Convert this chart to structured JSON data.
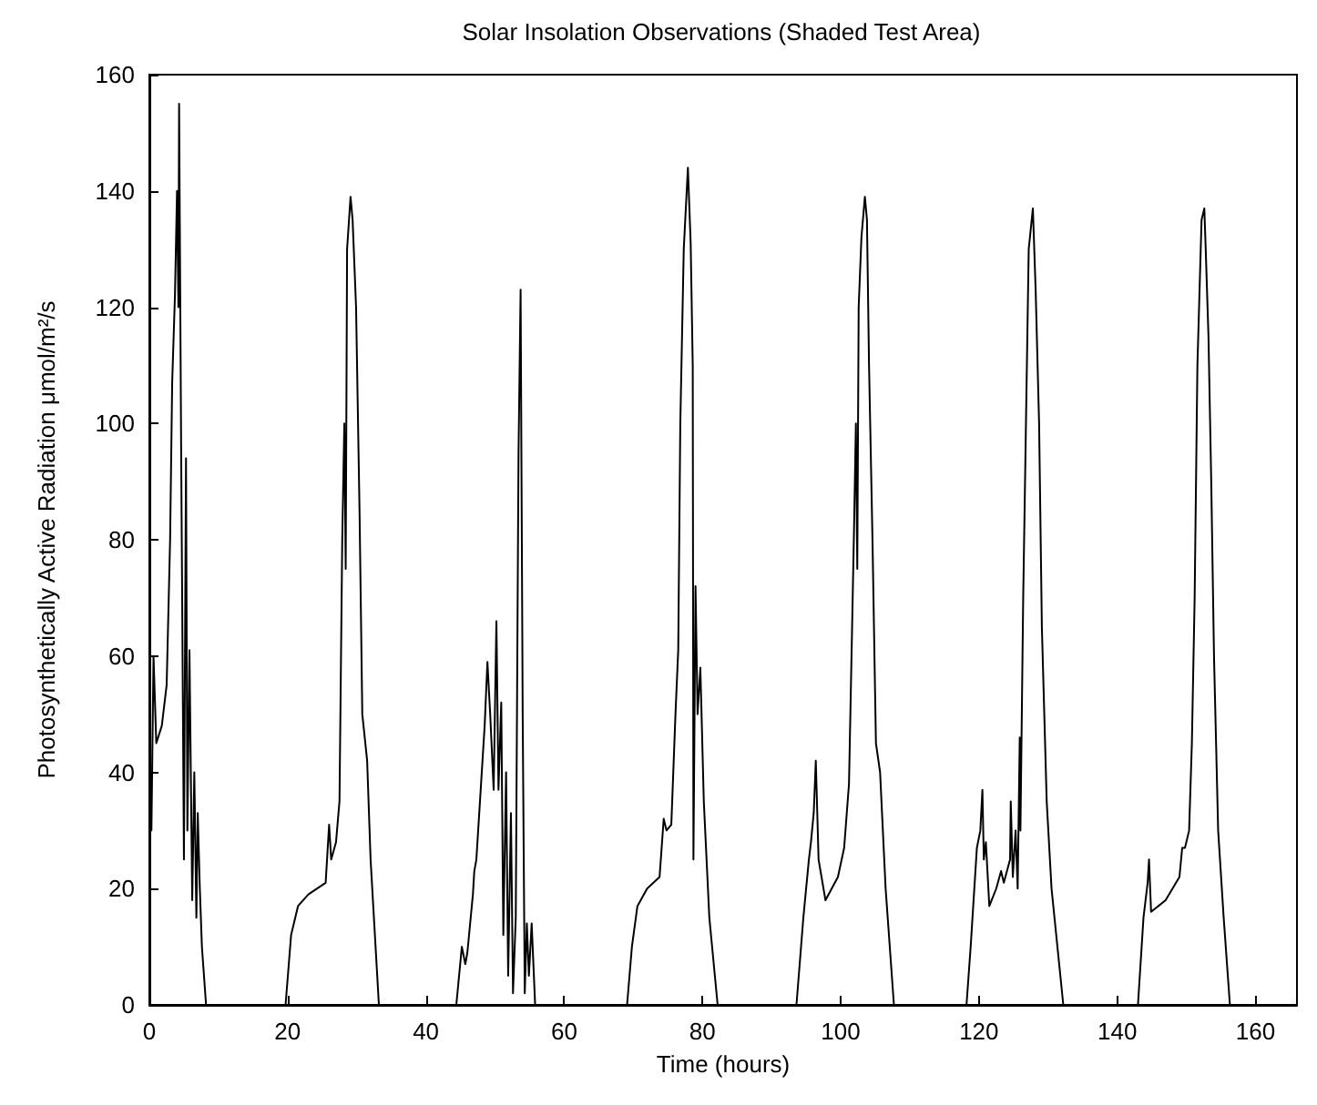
{
  "chart_data": {
    "type": "line",
    "title": "Solar Insolation Observations (Shaded Test Area)",
    "xlabel": "Time (hours)",
    "ylabel": "Photosynthetically Active Radiation μmol/m²/s",
    "xlim": [
      0,
      166
    ],
    "xticks": [
      0,
      20,
      40,
      60,
      80,
      100,
      120,
      140,
      160
    ],
    "ylim": [
      0,
      160
    ],
    "yticks": [
      0,
      20,
      40,
      60,
      80,
      100,
      120,
      140,
      160
    ],
    "grid": false,
    "marker": "none",
    "line_style": "solid",
    "x": [
      0,
      0.3,
      0.6,
      1,
      1.8,
      2.5,
      3,
      3.3,
      3.7,
      4,
      4.2,
      4.3,
      4.6,
      5,
      5.3,
      5.5,
      5.8,
      6.2,
      6.5,
      6.8,
      7,
      7.3,
      7.6,
      8.2,
      19.7,
      20.5,
      21.5,
      23,
      25.5,
      26,
      26.3,
      27,
      27.5,
      27.9,
      28.2,
      28.4,
      28.6,
      29.1,
      29.4,
      29.9,
      30.4,
      30.8,
      31.5,
      32,
      33.2,
      44.4,
      45.2,
      45.7,
      46,
      46.8,
      47,
      47.3,
      48.5,
      48.9,
      49.3,
      49.8,
      50.2,
      50.5,
      50.9,
      51.2,
      51.6,
      51.9,
      52.3,
      52.6,
      53,
      53.4,
      53.7,
      54,
      54.3,
      54.6,
      54.9,
      55.3,
      55.8,
      69.1,
      69.8,
      70.6,
      72,
      73.8,
      74.4,
      74.8,
      75.5,
      76.1,
      76.5,
      76.8,
      77.3,
      77.9,
      78.3,
      78.6,
      78.7,
      79,
      79.3,
      79.7,
      80.2,
      81,
      82.2,
      93.6,
      94.6,
      95.4,
      95.7,
      96.1,
      96.4,
      96.8,
      97.8,
      99.6,
      100.5,
      101.2,
      101.9,
      102.2,
      102.4,
      102.6,
      103,
      103.5,
      103.8,
      104.1,
      104.6,
      105.1,
      105.7,
      106.5,
      107.7,
      118.2,
      118.8,
      119.7,
      120.2,
      120.5,
      120.7,
      121,
      121.5,
      122.5,
      123.2,
      123.6,
      124.5,
      124.6,
      124.9,
      125.3,
      125.6,
      125.9,
      126,
      126.4,
      126.8,
      127.2,
      127.8,
      128.2,
      128.7,
      129.1,
      129.8,
      130.5,
      132.2,
      143,
      143.8,
      144.4,
      144.6,
      144.9,
      147,
      149,
      149.4,
      149.8,
      150.4,
      150.8,
      151.2,
      151.6,
      152.2,
      152.6,
      152.8,
      153.2,
      153.6,
      154,
      154.6,
      155.4,
      156.3,
      166
    ],
    "series": [
      {
        "color": "#000000",
        "values": [
          45,
          30,
          60,
          45,
          48,
          55,
          80,
          107,
          122,
          140,
          120,
          155,
          95,
          25,
          94,
          30,
          61,
          18,
          40,
          15,
          33,
          20,
          10,
          0,
          0,
          12,
          17,
          19,
          21,
          31,
          25,
          28,
          35,
          80,
          100,
          75,
          130,
          139,
          135,
          120,
          85,
          50,
          42,
          25,
          0,
          0,
          10,
          7,
          9,
          19,
          23,
          25,
          48,
          59,
          50,
          37,
          66,
          37,
          52,
          12,
          40,
          5,
          33,
          2,
          15,
          95,
          123,
          50,
          2,
          14,
          5,
          14,
          0,
          0,
          10,
          17,
          20,
          22,
          32,
          30,
          31,
          50,
          61,
          100,
          130,
          144,
          131,
          110,
          25,
          72,
          50,
          58,
          35,
          15,
          0,
          0,
          15,
          25,
          28,
          33,
          42,
          25,
          18,
          22,
          27,
          38,
          80,
          100,
          75,
          120,
          132,
          139,
          135,
          110,
          80,
          45,
          40,
          20,
          0,
          0,
          10,
          27,
          30,
          37,
          25,
          28,
          17,
          20,
          23,
          21,
          25,
          35,
          22,
          30,
          20,
          46,
          30,
          70,
          100,
          130,
          137,
          123,
          100,
          65,
          35,
          20,
          0,
          0,
          15,
          21,
          25,
          16,
          18,
          22,
          27,
          27,
          30,
          45,
          70,
          110,
          135,
          137,
          130,
          115,
          90,
          60,
          30,
          15,
          0,
          0
        ]
      }
    ]
  }
}
